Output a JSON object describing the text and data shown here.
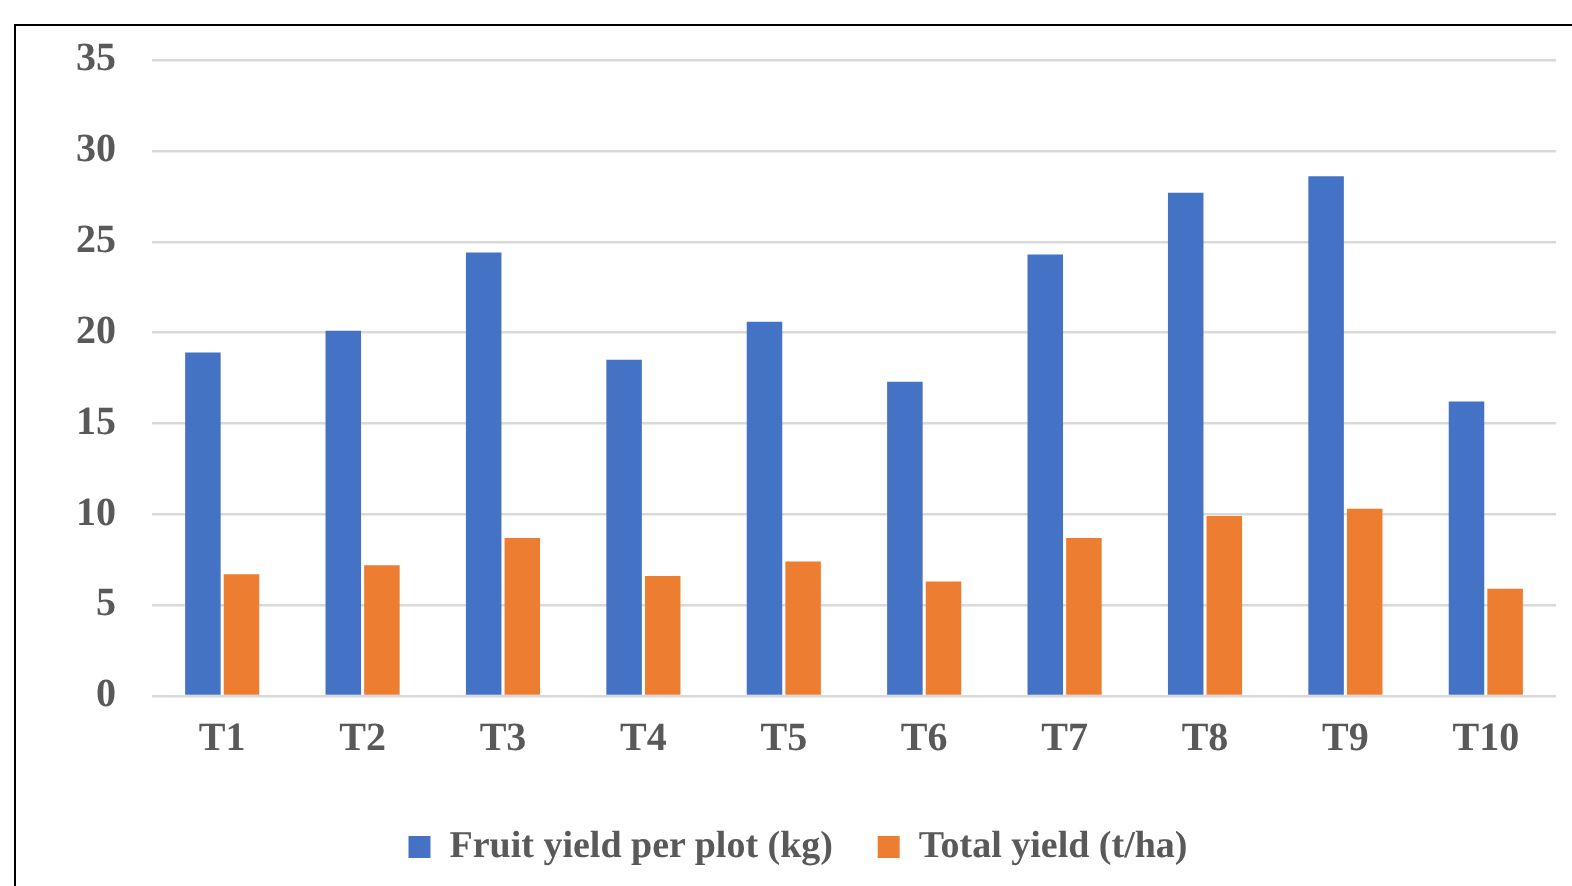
{
  "chart_data": {
    "type": "bar",
    "categories": [
      "T1",
      "T2",
      "T3",
      "T4",
      "T5",
      "T6",
      "T7",
      "T8",
      "T9",
      "T10"
    ],
    "series": [
      {
        "name": "Fruit yield per plot (kg)",
        "color": "#4472c4",
        "values": [
          18.9,
          20.1,
          24.4,
          18.5,
          20.6,
          17.3,
          24.3,
          27.7,
          28.6,
          16.2
        ]
      },
      {
        "name": "Total yield (t/ha)",
        "color": "#ed7d31",
        "values": [
          6.7,
          7.2,
          8.7,
          6.6,
          7.4,
          6.3,
          8.7,
          9.9,
          10.3,
          5.9
        ]
      }
    ],
    "ylim": [
      0,
      35
    ],
    "yticks": [
      0,
      5,
      10,
      15,
      20,
      25,
      30,
      35
    ],
    "grid": "y",
    "legend": "bottom"
  }
}
